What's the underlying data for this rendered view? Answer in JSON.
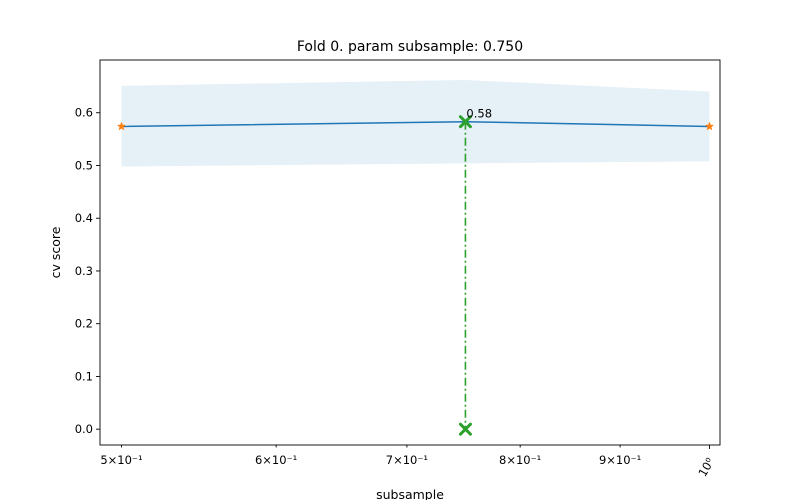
{
  "chart_data": {
    "type": "line",
    "title": "Fold 0. param subsample: 0.750",
    "xlabel": "subsample",
    "ylabel": "cv score",
    "xscale": "log",
    "xlim": [
      0.4875,
      1.0125
    ],
    "ylim": [
      -0.03,
      0.7
    ],
    "grid": false,
    "x": [
      0.5,
      0.75,
      1.0
    ],
    "series": [
      {
        "values": [
          0.574,
          0.583,
          0.574
        ],
        "color": "#1f77b4",
        "marker_color": "#ff7f0e"
      }
    ],
    "band": {
      "upper": [
        0.651,
        0.662,
        0.64
      ],
      "lower": [
        0.498,
        0.504,
        0.508
      ],
      "color": "#1f77b4"
    },
    "best": {
      "x": 0.75,
      "y": 0.583,
      "label": "0.58",
      "color": "#2ca02c"
    },
    "y_ticks": [
      {
        "value": 0.0,
        "label": "0.0"
      },
      {
        "value": 0.1,
        "label": "0.1"
      },
      {
        "value": 0.2,
        "label": "0.2"
      },
      {
        "value": 0.3,
        "label": "0.3"
      },
      {
        "value": 0.4,
        "label": "0.4"
      },
      {
        "value": 0.5,
        "label": "0.5"
      },
      {
        "value": 0.6,
        "label": "0.6"
      }
    ],
    "x_ticks": [
      {
        "value": 0.5,
        "label": "5×10⁻¹"
      },
      {
        "value": 0.6,
        "label": "6×10⁻¹"
      },
      {
        "value": 0.7,
        "label": "7×10⁻¹"
      },
      {
        "value": 0.8,
        "label": "8×10⁻¹"
      },
      {
        "value": 0.9,
        "label": "9×10⁻¹"
      },
      {
        "value": 1.0,
        "label": "10⁰",
        "rotated": true
      }
    ]
  }
}
